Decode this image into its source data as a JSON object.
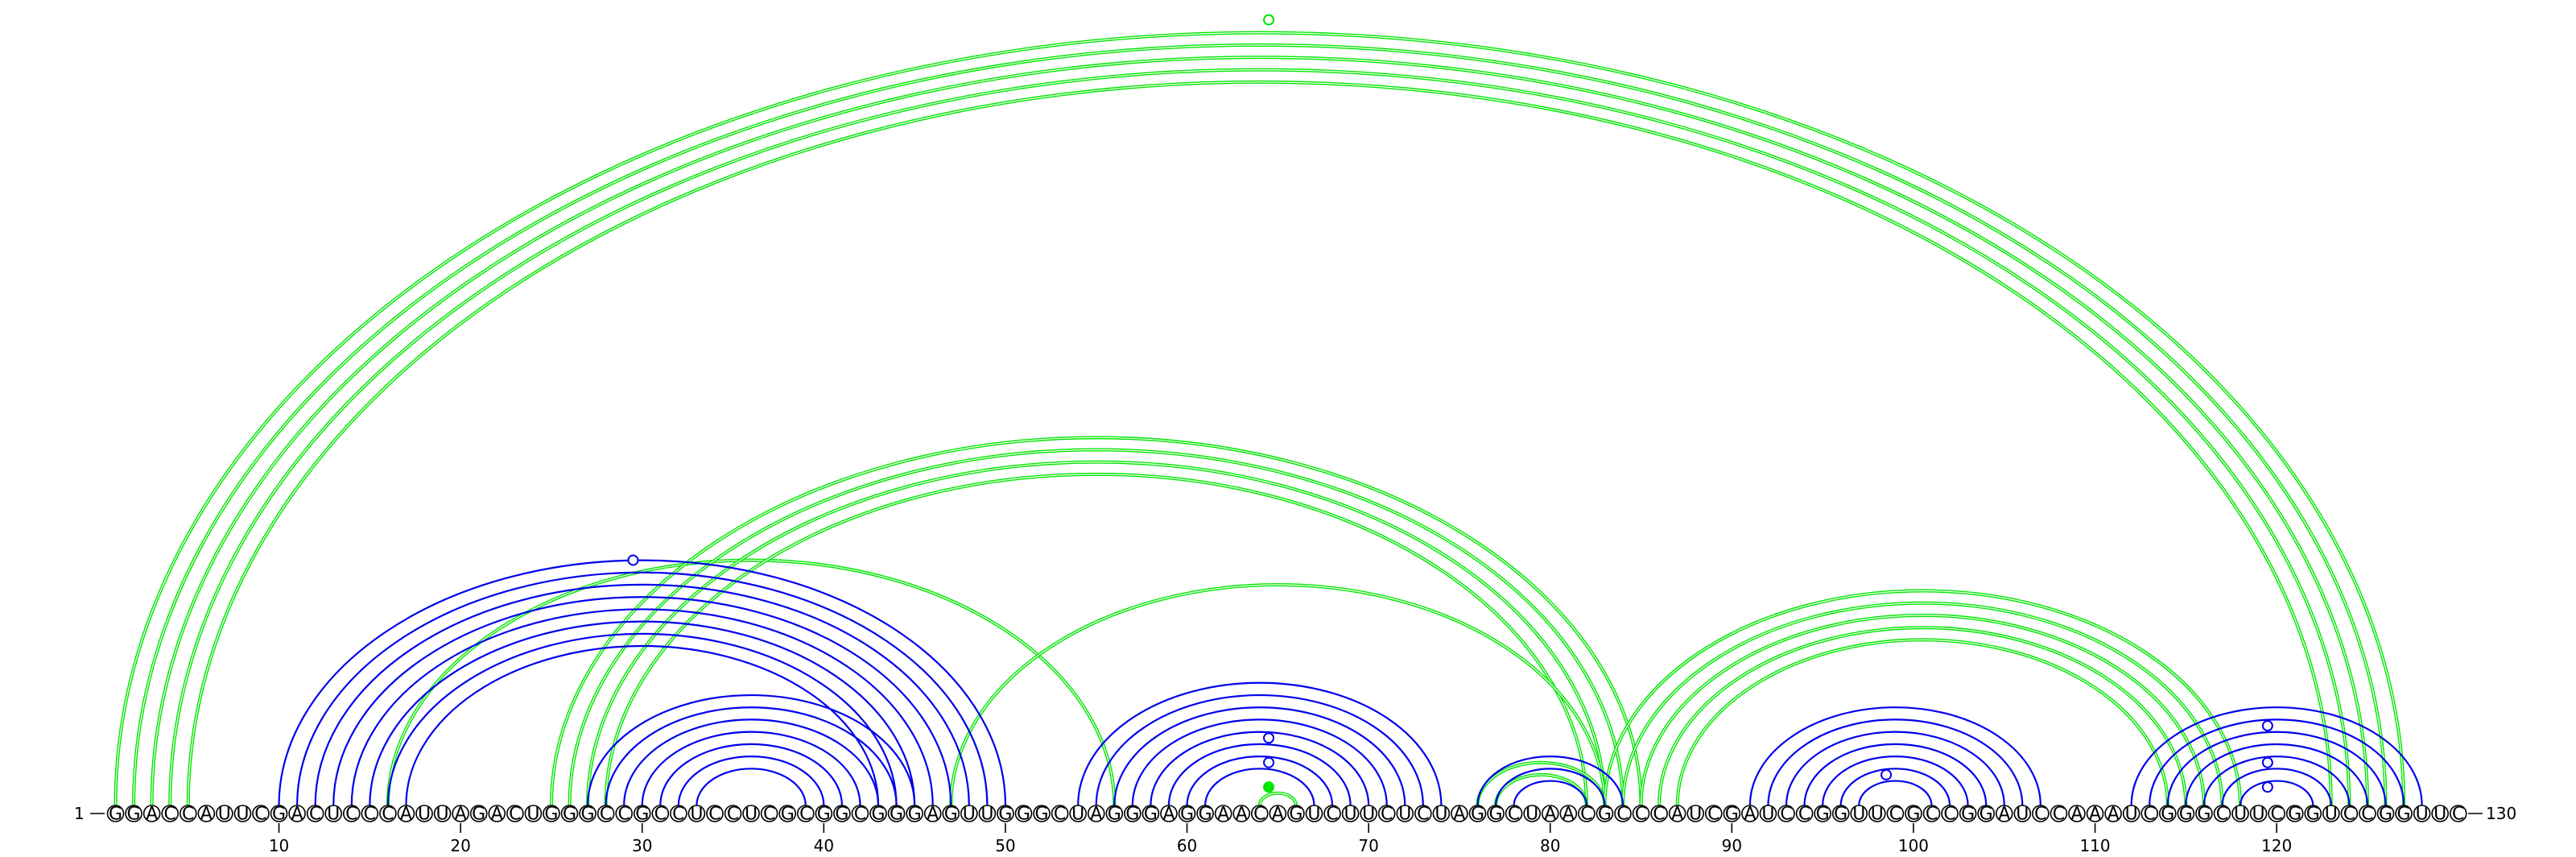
{
  "colors": {
    "helix_primary": "#0000ee",
    "helix_secondary": "#00e600",
    "nucleotide_outline": "#000000"
  },
  "sequence": "GGACCAUUCGACUCCCAUUAGACUGGGCCGCCUCCUCGCGGCGGGAGUUGGGCUAGGGAGGAACAGUCUUCUCUAGGCUAACGCCCAUCGAUCCGGUUCGCCGGAUCCAAAUCGGGCUUCGGUCCGGUUC",
  "start_label": "1",
  "end_label": "130",
  "tick_labels": [
    "10",
    "20",
    "30",
    "40",
    "50",
    "60",
    "70",
    "80",
    "90",
    "100",
    "110",
    "120"
  ],
  "helices": [
    {
      "color": "blue",
      "i": 10,
      "j": 50,
      "len": 8
    },
    {
      "color": "blue",
      "i": 27,
      "j": 45,
      "len": 7
    },
    {
      "color": "blue",
      "i": 54,
      "j": 74,
      "len": 8
    },
    {
      "color": "blue",
      "i": 76,
      "j": 84,
      "len": 3
    },
    {
      "color": "blue",
      "i": 91,
      "j": 107,
      "len": 7
    },
    {
      "color": "blue",
      "i": 112,
      "j": 128,
      "len": 7
    },
    {
      "color": "green",
      "i": 1,
      "j": 127,
      "len": 5
    },
    {
      "color": "green",
      "i": 16,
      "j": 56,
      "len": 1
    },
    {
      "color": "green",
      "i": 25,
      "j": 85,
      "len": 4
    },
    {
      "color": "green",
      "i": 47,
      "j": 83,
      "len": 1
    },
    {
      "color": "green",
      "i": 64,
      "j": 66,
      "len": 1
    },
    {
      "color": "green",
      "i": 76,
      "j": 83,
      "len": 2
    },
    {
      "color": "green",
      "i": 83,
      "j": 118,
      "len": 5
    },
    {
      "color": "green",
      "i": 130,
      "j": 0,
      "len": 0
    }
  ],
  "markers": [
    {
      "color": "blue",
      "pos": 29.5,
      "height_of": [
        10,
        50
      ]
    },
    {
      "color": "blue",
      "pos": 64.5,
      "height_of": [
        59,
        70
      ]
    },
    {
      "color": "blue",
      "pos": 64.5,
      "height_of": [
        61,
        68
      ]
    },
    {
      "color": "blue",
      "pos": 98.5,
      "height_of": [
        96,
        101
      ]
    },
    {
      "color": "blue",
      "pos": 119.5,
      "height_of": [
        113,
        126
      ]
    },
    {
      "color": "blue",
      "pos": 119.5,
      "height_of": [
        116,
        123
      ]
    },
    {
      "color": "blue",
      "pos": 119.5,
      "height_of": [
        118,
        121
      ]
    },
    {
      "color": "green",
      "pos": 64.5,
      "height_of": [
        1,
        127
      ],
      "extra": true
    },
    {
      "color": "green",
      "pos": 64.5,
      "height_of": [
        63,
        66
      ],
      "filled": true
    }
  ]
}
